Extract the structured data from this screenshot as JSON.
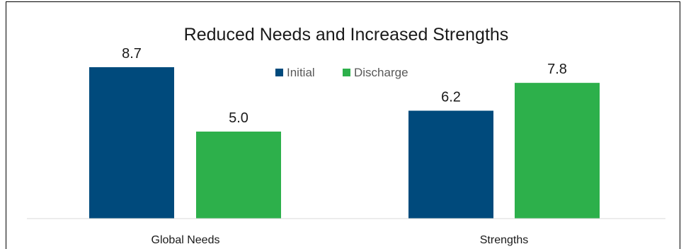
{
  "chart_data": {
    "type": "bar",
    "title": "Reduced Needs and Increased Strengths",
    "categories": [
      "Global Needs",
      "Strengths"
    ],
    "series": [
      {
        "name": "Initial",
        "values": [
          8.7,
          6.2
        ],
        "color": "#004A7C"
      },
      {
        "name": "Discharge",
        "values": [
          5.0,
          7.8
        ],
        "color": "#2DB04B"
      }
    ],
    "value_labels": [
      [
        "8.7",
        "6.2"
      ],
      [
        "5.0",
        "7.8"
      ]
    ],
    "ylim": [
      0,
      10
    ],
    "legend_position": "top-center",
    "grid": false
  }
}
